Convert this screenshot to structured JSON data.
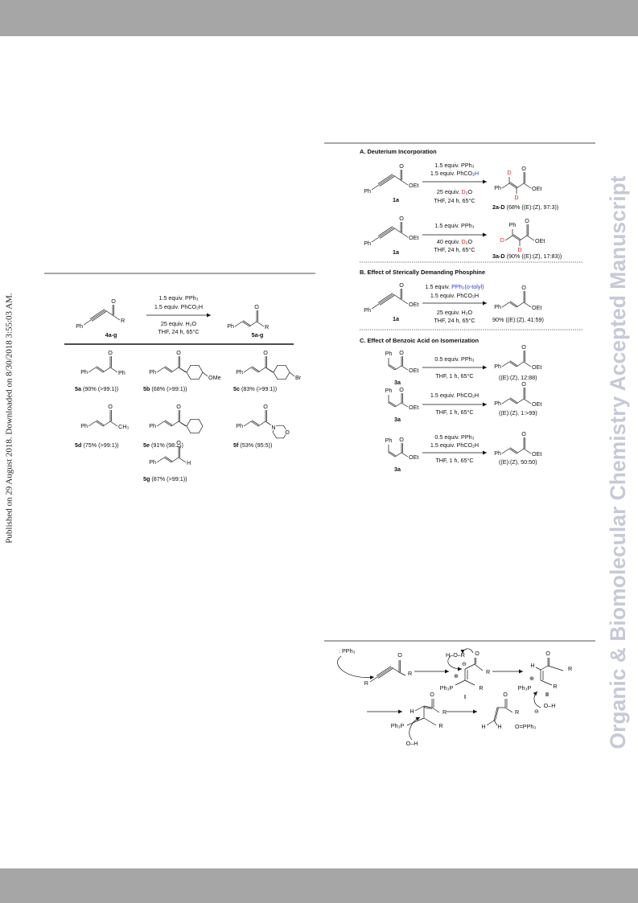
{
  "side_note": "Published on 29 August 2018. Downloaded on 8/30/2018 3:55:03 AM.",
  "watermark": "Organic & Biomolecular Chemistry Accepted Manuscript",
  "scheme1": {
    "reactant": {
      "atoms": [
        "Ph",
        "O",
        "R"
      ],
      "label": "4a-g"
    },
    "above": [
      "1.5 equiv. PPh₃",
      "1.5 equiv. PhCO₂H"
    ],
    "below": [
      "25 equiv. H₂O",
      "THF, 24 h, 65°C"
    ],
    "product": {
      "atoms": [
        "Ph",
        "O",
        "R"
      ],
      "label": "5a-g"
    },
    "products": [
      {
        "id": "5a",
        "result": "(90% (>99:1))",
        "atoms": [
          "Ph",
          "O",
          "Ph"
        ]
      },
      {
        "id": "5b",
        "result": "(68% (>99:1))",
        "atoms": [
          "Ph",
          "O",
          "OMe"
        ]
      },
      {
        "id": "5c",
        "result": "(83% (>99:1))",
        "atoms": [
          "Ph",
          "O",
          "Br"
        ]
      },
      {
        "id": "5d",
        "result": "(75% (>99:1))",
        "atoms": [
          "Ph",
          "O",
          "CH₃"
        ]
      },
      {
        "id": "5e",
        "result": "(91% (98:2))",
        "atoms": [
          "Ph",
          "O"
        ]
      },
      {
        "id": "5f",
        "result": "(53% (95:5))",
        "atoms": [
          "Ph",
          "O",
          "N",
          "O"
        ]
      },
      {
        "id": "5g",
        "result": "(87% (>99:1))",
        "atoms": [
          "Ph",
          "O",
          "H"
        ]
      }
    ]
  },
  "scheme2": {
    "A": {
      "title": "A. Deuterium Incorporation",
      "reactions": [
        {
          "reactant": {
            "atoms": [
              "Ph",
              "O",
              "OEt"
            ],
            "label": "1a"
          },
          "above": [
            [
              "1.5 equiv. PPh₃"
            ],
            [
              "1.5 equiv. PhCO₂",
              "H"
            ]
          ],
          "below": [
            [
              "25 equiv. ",
              "D",
              "₂O"
            ],
            [
              "THF, 24 h, 65°C"
            ]
          ],
          "product": {
            "atoms": [
              "Ph",
              "D",
              "D",
              "O",
              "OEt"
            ],
            "label": "2a-D",
            "result": "(68% ((E):(Z), 97:3))"
          }
        },
        {
          "reactant": {
            "atoms": [
              "Ph",
              "O",
              "OEt"
            ],
            "label": "1a"
          },
          "above": [
            [
              "1.5 equiv. PPh₃"
            ]
          ],
          "below": [
            [
              "40 equiv. ",
              "D",
              "₂O"
            ],
            [
              "THF, 24 h, 65°C"
            ]
          ],
          "product": {
            "atoms": [
              "Ph",
              "D",
              "D",
              "O",
              "OEt"
            ],
            "label": "3a-D",
            "result": "(90% ((E):(Z), 17:83))"
          }
        }
      ]
    },
    "B": {
      "title": "B. Effect of Sterically Demanding Phosphine",
      "reaction": {
        "reactant": {
          "atoms": [
            "Ph",
            "O",
            "OEt"
          ],
          "label": "1a"
        },
        "above": [
          [
            "1.5 equiv. ",
            "PPh₂(o-tolyl)"
          ],
          [
            "1.5 equiv. PhCO₂H"
          ]
        ],
        "below": [
          [
            "25 equiv. H₂O"
          ],
          [
            "THF, 24 h, 65°C"
          ]
        ],
        "product": {
          "atoms": [
            "Ph",
            "O",
            "OEt"
          ],
          "result": "90% ((E):(Z), 41:59)"
        }
      }
    },
    "C": {
      "title": "C. Effect of Benzoic Acid on Isomerization",
      "reactions": [
        {
          "reactant": {
            "atoms": [
              "Ph",
              "O",
              "OEt"
            ],
            "label": "3a"
          },
          "above": [
            [
              "0.5 equiv. PPh₃"
            ]
          ],
          "below": [
            [
              "THF, 1 h, 65°C"
            ]
          ],
          "product": {
            "atoms": [
              "Ph",
              "O",
              "OEt"
            ],
            "result": "((E):(Z), 12:88)"
          }
        },
        {
          "reactant": {
            "atoms": [
              "Ph",
              "O",
              "OEt"
            ],
            "label": "3a"
          },
          "above": [
            [
              "1.5 equiv. PhCO₂H"
            ]
          ],
          "below": [
            [
              "THF, 1 h, 65°C"
            ]
          ],
          "product": {
            "atoms": [
              "Ph",
              "O",
              "OEt"
            ],
            "result": "((E):(Z), 1:>99)"
          }
        },
        {
          "reactant": {
            "atoms": [
              "Ph",
              "O",
              "OEt"
            ],
            "label": "3a"
          },
          "above": [
            [
              "0.5 equiv. PPh₃"
            ],
            [
              "1.5 equiv. PhCO₂H"
            ]
          ],
          "below": [
            [
              "THF, 1 h, 65°C"
            ]
          ],
          "product": {
            "atoms": [
              "Ph",
              "O",
              "OEt"
            ],
            "result": "((E):(Z), 50:50)"
          }
        }
      ]
    }
  },
  "mechanism": {
    "texts": [
      ": PPh₃",
      "R",
      "O",
      "R",
      "H–O–R",
      "⊖",
      "O",
      "⊕",
      "R",
      "Ph₃P",
      "R",
      "I",
      "O",
      "R",
      "H",
      "⊕",
      "Ph₃P",
      "R",
      "II",
      "⊖",
      "O–H",
      "H",
      "O",
      "R",
      "Ph₃P",
      "R",
      "O–H",
      "H",
      "O",
      "R",
      "H",
      "O=PPh₃"
    ]
  }
}
